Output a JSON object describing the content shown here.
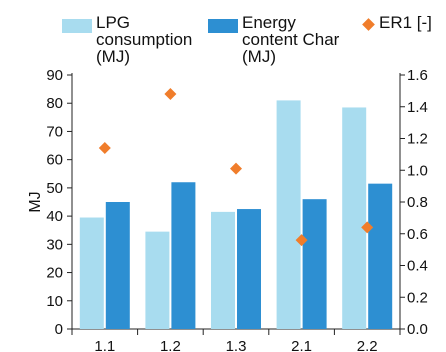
{
  "chart_data": {
    "type": "bar",
    "categories": [
      "1.1",
      "1.2",
      "1.3",
      "2.1",
      "2.2"
    ],
    "series": [
      {
        "name": "LPG consumption (MJ)",
        "legend_lines": [
          "LPG",
          "consumption",
          "(MJ)"
        ],
        "axis": "left",
        "kind": "bar",
        "color": "#a8dcef",
        "values": [
          39.5,
          34.5,
          41.5,
          81,
          78.5
        ]
      },
      {
        "name": "Energy content Char (MJ)",
        "legend_lines": [
          "Energy",
          "content Char",
          "(MJ)"
        ],
        "axis": "left",
        "kind": "bar",
        "color": "#2d8fd2",
        "values": [
          45,
          52,
          42.5,
          46,
          51.5
        ]
      },
      {
        "name": "ER1 [-]",
        "legend_lines": [
          "ER1 [-]"
        ],
        "axis": "right",
        "kind": "scatter",
        "color": "#f07d2b",
        "values": [
          1.14,
          1.48,
          1.01,
          0.56,
          0.64
        ]
      }
    ],
    "ylabel": "MJ",
    "ylim": [
      0,
      90
    ],
    "yticks": [
      0,
      10,
      20,
      30,
      40,
      50,
      60,
      70,
      80,
      90
    ],
    "y2lim": [
      0,
      1.6
    ],
    "y2ticks": [
      "0.0",
      "0.2",
      "0.4",
      "0.6",
      "0.8",
      "1.0",
      "1.2",
      "1.4",
      "1.6"
    ],
    "grid": false,
    "legend_position": "top"
  }
}
